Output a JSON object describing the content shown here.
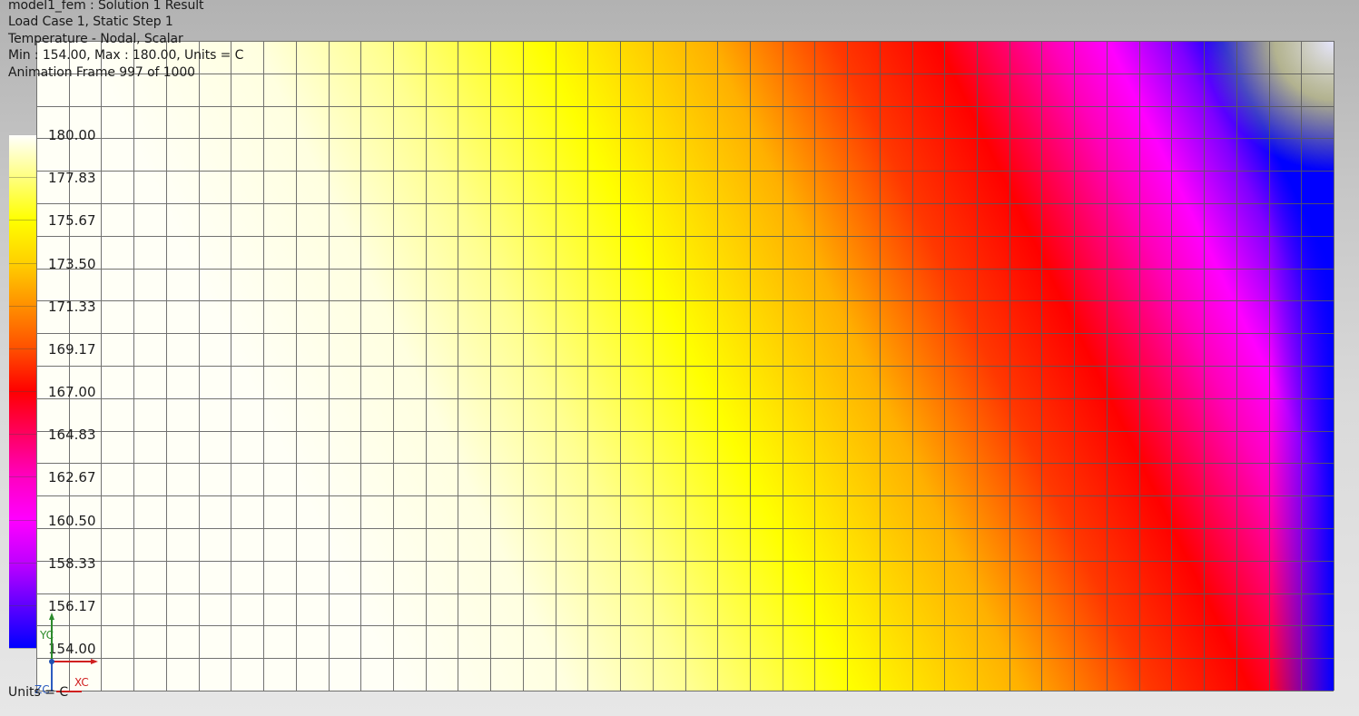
{
  "header": {
    "line1": "model1_fem : Solution 1 Result",
    "line2": "Load Case 1, Static Step 1",
    "line3": "Temperature - Nodal, Scalar",
    "line4": "Min : 154.00, Max : 180.00, Units = C",
    "line5": "Animation Frame 997 of 1000"
  },
  "legend": {
    "labels": [
      "180.00",
      "177.83",
      "175.67",
      "173.50",
      "171.33",
      "169.17",
      "167.00",
      "164.83",
      "162.67",
      "160.50",
      "158.33",
      "156.17",
      "154.00"
    ],
    "colors": [
      "#ffffff",
      "#ffff80",
      "#ffff00",
      "#ffd000",
      "#ff9000",
      "#ff5000",
      "#ff0000",
      "#ff0060",
      "#ff00c0",
      "#ff00ff",
      "#c000ff",
      "#6000ff",
      "#0000ff"
    ]
  },
  "units": "Units = C",
  "triad": {
    "y": "YC",
    "x": "XC",
    "z": "ZC"
  }
}
